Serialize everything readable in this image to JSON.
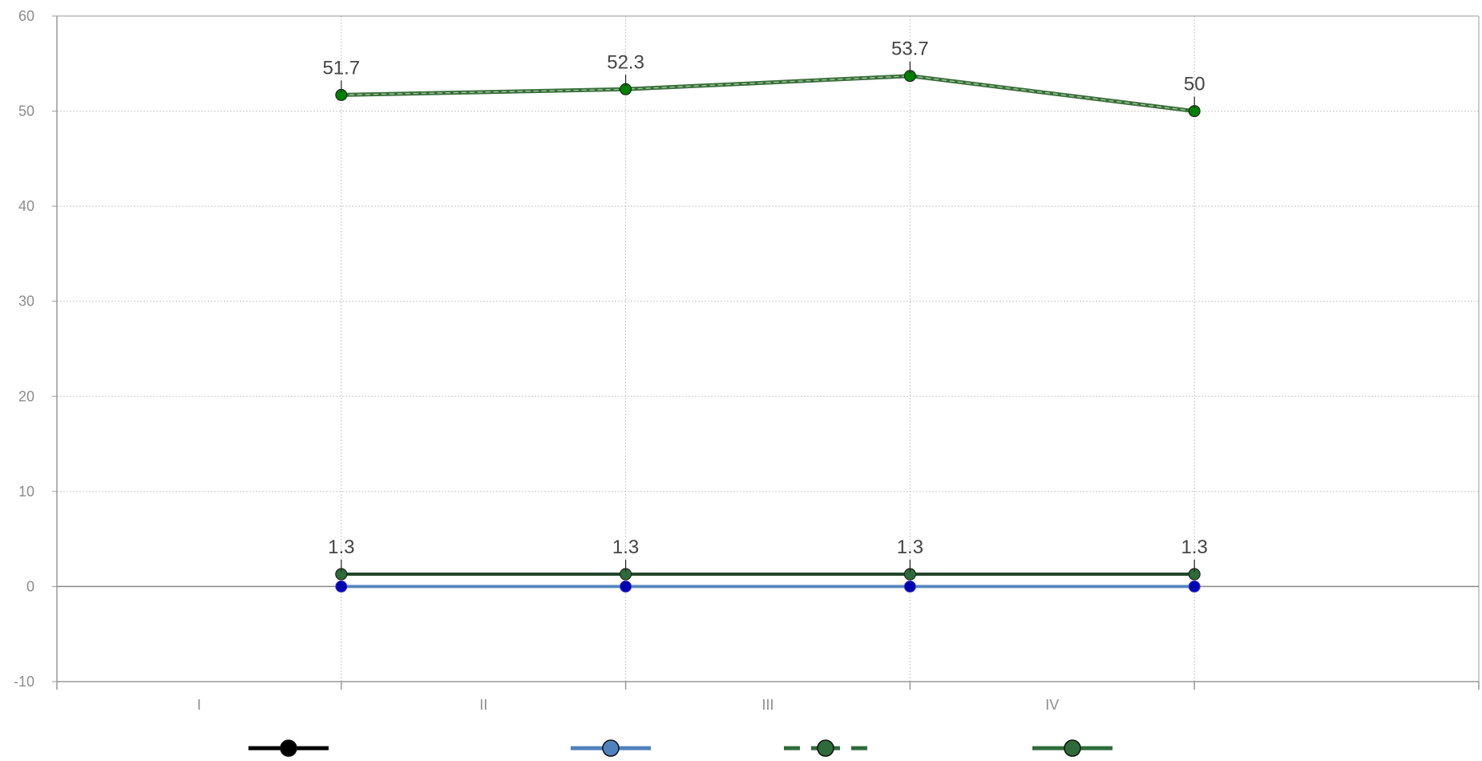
{
  "chart_data": {
    "type": "line",
    "title": "",
    "xlabel": "",
    "ylabel": "",
    "categories": [
      "I",
      "II",
      "III",
      "IV"
    ],
    "ylim": [
      -10,
      60
    ],
    "yticks": [
      -10,
      0,
      10,
      20,
      30,
      40,
      50,
      60
    ],
    "grid": true,
    "legend_position": "bottom",
    "series": [
      {
        "values": [
          1.3,
          1.3,
          1.3,
          1.3
        ],
        "color": "#000000",
        "marker_color": "#000000",
        "style": "solid",
        "show_labels": true
      },
      {
        "values": [
          0,
          0,
          0,
          0
        ],
        "color": "#4f81bd",
        "marker_color": "#0000b0",
        "style": "solid",
        "show_labels": false
      },
      {
        "values": [
          51.7,
          52.3,
          53.7,
          50
        ],
        "color": "#3a6e3a",
        "marker_color": "#008000",
        "style": "dashed",
        "show_labels": true
      },
      {
        "values": [
          1.3,
          1.3,
          1.3,
          1.3
        ],
        "color": "#2e6b3a",
        "marker_color": "#2e6b3a",
        "style": "solid",
        "show_labels": false
      }
    ],
    "legend": [
      {
        "color": "#000000",
        "marker_color": "#000000",
        "style": "solid"
      },
      {
        "color": "#4f81bd",
        "marker_color": "#4f81bd",
        "style": "solid"
      },
      {
        "color": "#2e6b3a",
        "marker_color": "#2e6b3a",
        "style": "dashed"
      },
      {
        "color": "#2e6b3a",
        "marker_color": "#2e6b3a",
        "style": "solid"
      }
    ],
    "colors": {
      "axis": "#999999",
      "grid": "#c8c8c8",
      "tick_text": "#8c8c8c",
      "label_text": "#444444",
      "zero_line": "#888888"
    }
  }
}
